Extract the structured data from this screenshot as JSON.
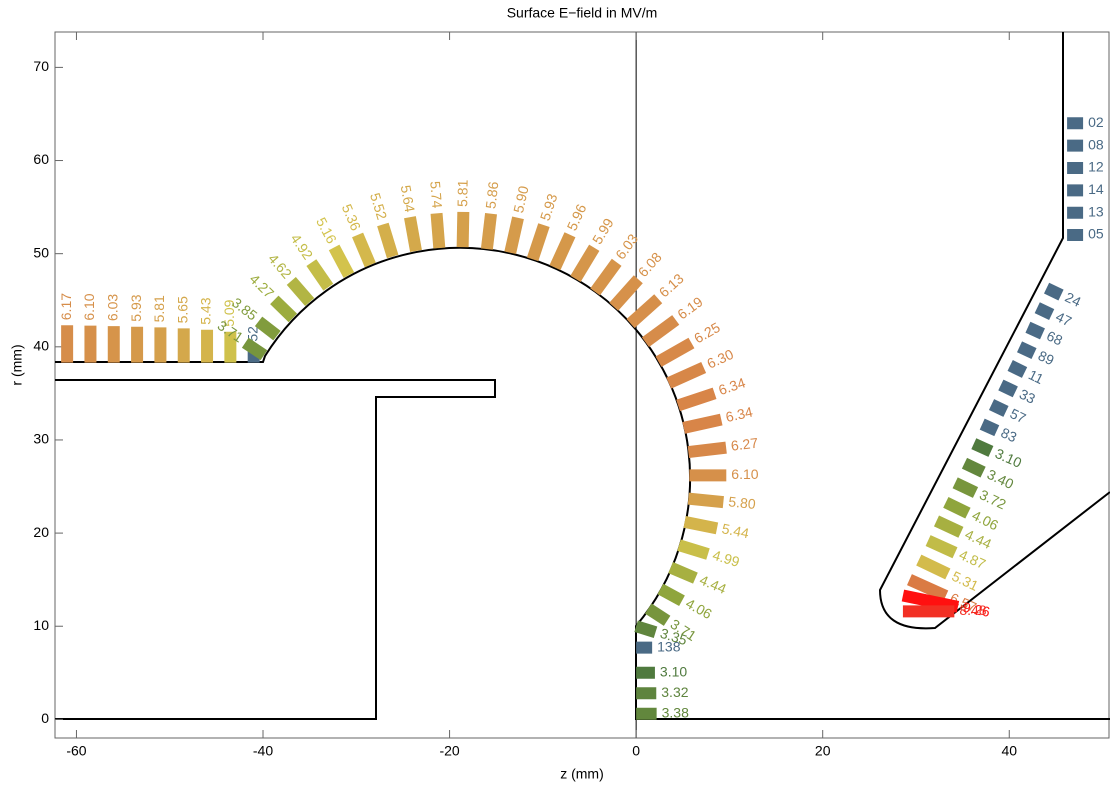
{
  "chart_data": {
    "type": "surface-field",
    "title": "Surface E−field in MV/m",
    "x_label": "z (mm)",
    "y_label": "r (mm)",
    "xlim": [
      -62.3,
      50.8
    ],
    "ylim": [
      -2,
      73.8
    ],
    "xticks": [
      -60,
      -40,
      -20,
      0,
      20,
      40
    ],
    "yticks": [
      0,
      10,
      20,
      30,
      40,
      50,
      60,
      70
    ],
    "colormap": [
      "#4f7a3e",
      "#93a83c",
      "#d3c34c",
      "#d68c4a",
      "#e0603a",
      "#ee3a2a",
      "#ff1010"
    ],
    "missing_color": "#4a6a85",
    "groups": [
      {
        "z": [
          -61,
          -58.5,
          -56,
          -53.5,
          -51,
          -48.5,
          -46,
          -43.5,
          -41
        ],
        "r": [
          38.3,
          38.3,
          38.3,
          38.3,
          38.3,
          38.3,
          38.3,
          38.3,
          38.3
        ],
        "values": [
          6.17,
          6.1,
          6.03,
          5.93,
          5.81,
          5.65,
          5.43,
          5.09,
          null
        ],
        "value_labels": [
          "6.17",
          "6.10",
          "6.03",
          "5.93",
          "5.81",
          "5.65",
          "5.43",
          "5.09",
          "52"
        ]
      },
      {
        "z": [
          -39.9,
          -38.5,
          -36.8,
          -35.0,
          -33.0,
          -30.8,
          -28.5,
          -26.1,
          -23.6,
          -21.1,
          -18.6,
          -16.0,
          -13.5,
          -11.1,
          -8.7,
          -6.5,
          -4.4,
          -2.4,
          -0.6,
          1.0,
          2.4,
          3.5,
          4.5,
          5.1,
          5.6,
          5.7,
          5.6,
          5.2,
          4.6,
          3.7,
          2.6,
          1.3,
          0.0,
          0.0,
          0.0,
          0.0,
          0.0
        ],
        "r": [
          39.1,
          41.2,
          43.1,
          44.8,
          46.4,
          47.7,
          48.8,
          49.7,
          50.3,
          50.6,
          50.7,
          50.5,
          50.1,
          49.4,
          48.5,
          47.3,
          45.9,
          44.3,
          42.5,
          40.5,
          38.4,
          36.1,
          33.7,
          31.3,
          28.7,
          26.2,
          23.7,
          21.2,
          18.7,
          16.3,
          14.0,
          11.9,
          10.0,
          7.7,
          5.0,
          2.8,
          0.6
        ],
        "values": [
          3.71,
          3.85,
          4.27,
          4.62,
          4.92,
          5.16,
          5.36,
          5.52,
          5.64,
          5.74,
          5.81,
          5.86,
          5.9,
          5.93,
          5.96,
          5.99,
          6.03,
          6.08,
          6.13,
          6.19,
          6.25,
          6.3,
          6.34,
          6.34,
          6.27,
          6.1,
          5.8,
          5.44,
          4.99,
          4.44,
          4.06,
          3.71,
          3.35,
          null,
          3.1,
          3.32,
          3.38
        ],
        "value_labels": [
          "3.71",
          "3.85",
          "4.27",
          "4.62",
          "4.92",
          "5.16",
          "5.36",
          "5.52",
          "5.64",
          "5.74",
          "5.81",
          "5.86",
          "5.90",
          "5.93",
          "5.96",
          "5.99",
          "6.03",
          "6.08",
          "6.13",
          "6.19",
          "6.25",
          "6.30",
          "6.34",
          "6.34",
          "6.27",
          "6.10",
          "5.80",
          "5.44",
          "4.99",
          "4.44",
          "4.06",
          "3.71",
          "3.35",
          "138",
          "3.10",
          "3.32",
          "3.38"
        ]
      },
      {
        "z": [
          46.2,
          46.2,
          46.2,
          46.2,
          46.2,
          46.2
        ],
        "r": [
          64,
          61.6,
          59.2,
          56.8,
          54.4,
          52
        ],
        "values": [
          null,
          null,
          null,
          null,
          null,
          null
        ],
        "value_labels": [
          "02",
          "08",
          "12",
          "14",
          "13",
          "05"
        ]
      },
      {
        "z": [
          44.0,
          43.0,
          42.0,
          41.1,
          40.1,
          39.1,
          38.1,
          37.1,
          36.2,
          35.2,
          34.2,
          33.2,
          32.2,
          31.3,
          30.3,
          29.3,
          28.6,
          28.6
        ],
        "r": [
          46.3,
          44.2,
          42.1,
          40.0,
          38.0,
          35.9,
          33.8,
          31.7,
          29.6,
          27.5,
          25.4,
          23.3,
          21.3,
          19.2,
          17.1,
          15.0,
          13.3,
          11.6
        ],
        "values": [
          null,
          null,
          null,
          null,
          null,
          null,
          null,
          null,
          3.1,
          3.4,
          3.72,
          4.06,
          4.44,
          4.87,
          5.31,
          6.57,
          9.26,
          8.48
        ],
        "value_labels": [
          "24",
          "47",
          "68",
          "89",
          "11",
          "33",
          "57",
          "83",
          "3.10",
          "3.40",
          "3.72",
          "4.06",
          "4.44",
          "4.87",
          "5.31",
          "6.57",
          "9.26",
          "8.48"
        ]
      }
    ]
  }
}
